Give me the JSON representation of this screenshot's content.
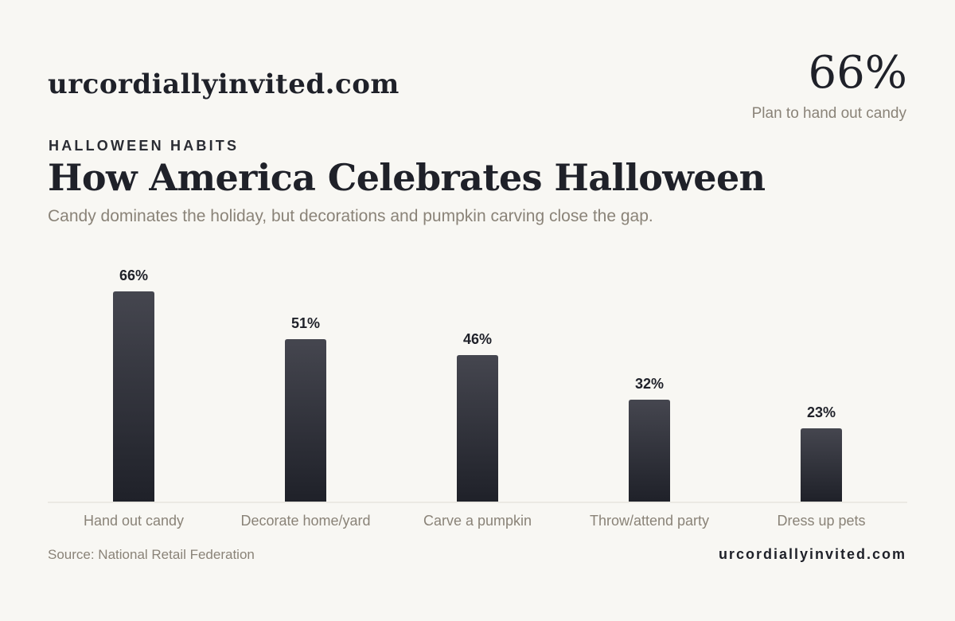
{
  "header": {
    "brand": "urcordiallyinvited.com",
    "kpi_value": "66%",
    "kpi_label": "Plan to hand out candy",
    "eyebrow": "HALLOWEEN HABITS",
    "title": "How America Celebrates Halloween",
    "subtitle": "Candy dominates the holiday, but decorations and pumpkin carving close the gap."
  },
  "footer": {
    "source": "Source: National Retail Federation",
    "brand": "urcordiallyinvited.com"
  },
  "chart_data": {
    "type": "bar",
    "title": "How America Celebrates Halloween",
    "categories": [
      "Hand out candy",
      "Decorate home/yard",
      "Carve a pumpkin",
      "Throw/attend party",
      "Dress up pets"
    ],
    "values": [
      66,
      51,
      46,
      32,
      23
    ],
    "value_labels": [
      "66%",
      "51%",
      "46%",
      "32%",
      "23%"
    ],
    "unit": "%",
    "ylim": [
      0,
      66
    ],
    "grid": false,
    "legend": "none",
    "colors": {
      "bar_top": "#45464f",
      "bar_bottom": "#1f2129",
      "axis": "#dedbd3",
      "value_label": "#1f2129",
      "category_label": "#8a8378"
    }
  }
}
